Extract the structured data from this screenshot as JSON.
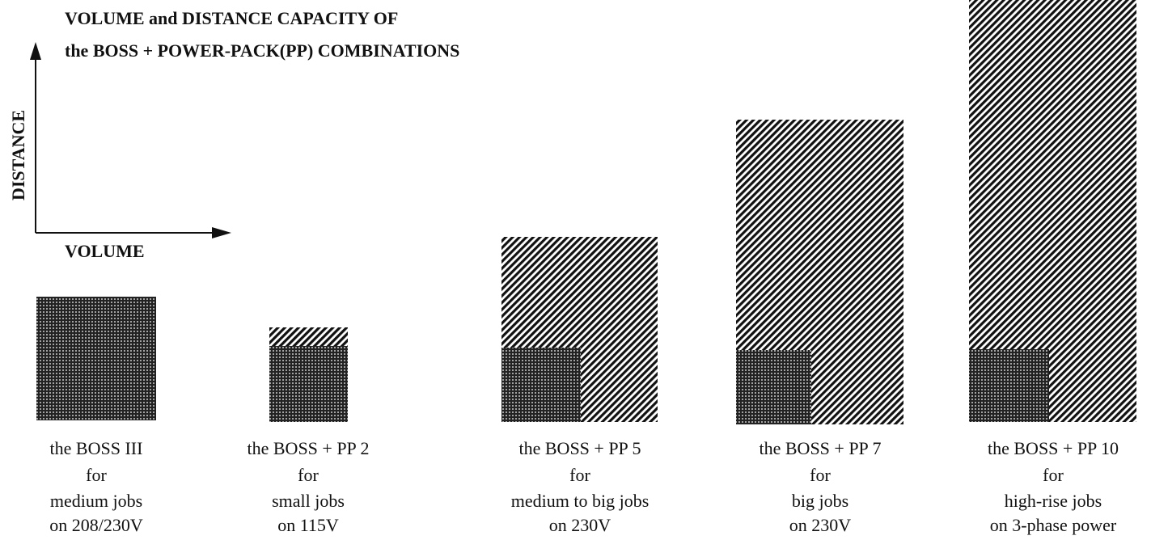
{
  "title": [
    "VOLUME and DISTANCE CAPACITY OF",
    "the BOSS + POWER-PACK(PP) COMBINATIONS"
  ],
  "axes": {
    "y": "DISTANCE",
    "x": "VOLUME"
  },
  "items": [
    {
      "lines": [
        "the BOSS III",
        "for",
        "medium jobs",
        "on 208/230V"
      ]
    },
    {
      "lines": [
        "the BOSS + PP 2",
        "for",
        "small jobs",
        "on 115V"
      ]
    },
    {
      "lines": [
        "the BOSS + PP 5",
        "for",
        "medium to big jobs",
        "on 230V"
      ]
    },
    {
      "lines": [
        "the BOSS + PP 7",
        "for",
        "big jobs",
        "on 230V"
      ]
    },
    {
      "lines": [
        "the BOSS + PP 10",
        "for",
        "high-rise jobs",
        "on 3-phase power"
      ]
    }
  ]
}
